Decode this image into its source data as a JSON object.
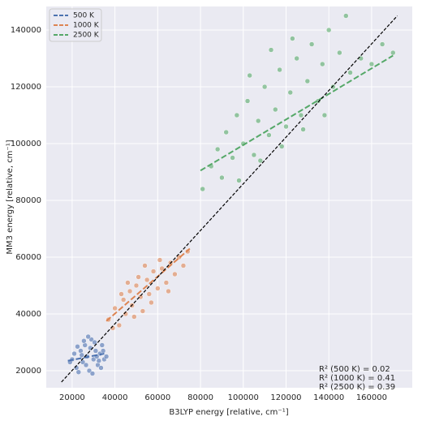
{
  "chart_data": {
    "type": "scatter",
    "xlabel": "B3LYP energy [relative, cm⁻¹]",
    "ylabel": "MM3 energy [relative, cm⁻¹]",
    "xlim": [
      7900,
      179000
    ],
    "ylim": [
      14000,
      148300
    ],
    "xticks": [
      20000,
      40000,
      60000,
      80000,
      100000,
      120000,
      140000,
      160000
    ],
    "yticks": [
      20000,
      40000,
      60000,
      80000,
      100000,
      120000,
      140000
    ],
    "grid": true,
    "legend": "upper left",
    "series": [
      {
        "name": "500 K",
        "color": "#4c72b0",
        "x": [
          20000,
          22000,
          24000,
          25000,
          26000,
          27000,
          28000,
          29000,
          30000,
          31000,
          32000,
          33000,
          34000,
          35000,
          21000,
          23000,
          26500,
          28500,
          30500,
          33500,
          19000,
          24500,
          27500,
          31500,
          29500,
          25500,
          22500,
          32500,
          34500,
          36000
        ],
        "values": [
          24000,
          21000,
          27000,
          23000,
          29000,
          25000,
          20000,
          31000,
          24000,
          27000,
          22000,
          26000,
          29000,
          24000,
          26000,
          19500,
          22000,
          28000,
          30000,
          21000,
          23000,
          25500,
          32000,
          25000,
          19000,
          30500,
          28500,
          23500,
          27000,
          25000
        ],
        "fit_x": [
          18000,
          35000
        ],
        "fit_y": [
          23500,
          26000
        ]
      },
      {
        "name": "1000 K",
        "color": "#dd8452",
        "x": [
          37000,
          40000,
          42000,
          44000,
          45000,
          47000,
          48000,
          50000,
          52000,
          53000,
          55000,
          56000,
          58000,
          60000,
          62000,
          64000,
          66000,
          68000,
          70000,
          72000,
          74000,
          39000,
          43000,
          49000,
          51000,
          57000,
          61000,
          65000,
          46000,
          54000
        ],
        "values": [
          38000,
          42000,
          36000,
          45000,
          40000,
          48000,
          43000,
          50000,
          46000,
          41000,
          52000,
          47000,
          55000,
          49000,
          56000,
          51000,
          58000,
          54000,
          60000,
          57000,
          62000,
          35000,
          47000,
          39000,
          53000,
          44000,
          59000,
          48000,
          51000,
          57000
        ],
        "fit_x": [
          36000,
          75000
        ],
        "fit_y": [
          37500,
          63000
        ]
      },
      {
        "name": "2500 K",
        "color": "#55a868",
        "x": [
          81000,
          85000,
          88000,
          90000,
          92000,
          95000,
          97000,
          100000,
          102000,
          105000,
          107000,
          110000,
          112000,
          115000,
          117000,
          120000,
          122000,
          125000,
          127000,
          130000,
          132000,
          135000,
          137000,
          140000,
          142000,
          145000,
          148000,
          150000,
          155000,
          160000,
          165000,
          170000,
          98000,
          108000,
          118000,
          128000,
          138000,
          103000,
          113000,
          123000
        ],
        "values": [
          84000,
          92000,
          98000,
          88000,
          104000,
          95000,
          110000,
          100000,
          115000,
          96000,
          108000,
          120000,
          103000,
          112000,
          126000,
          106000,
          118000,
          130000,
          110000,
          122000,
          135000,
          115000,
          128000,
          140000,
          120000,
          132000,
          145000,
          125000,
          130000,
          128000,
          135000,
          132000,
          87000,
          94000,
          99000,
          105000,
          110000,
          124000,
          133000,
          137000
        ],
        "fit_x": [
          80000,
          170000
        ],
        "fit_y": [
          90500,
          131000
        ]
      }
    ],
    "diagonal": {
      "x": [
        15000,
        172000
      ],
      "y": [
        16000,
        145000
      ],
      "color": "#000000"
    },
    "annotations": [
      "R² (500 K) = 0.02",
      "R² (1000 K) = 0.41",
      "R² (2500 K) = 0.39"
    ]
  }
}
